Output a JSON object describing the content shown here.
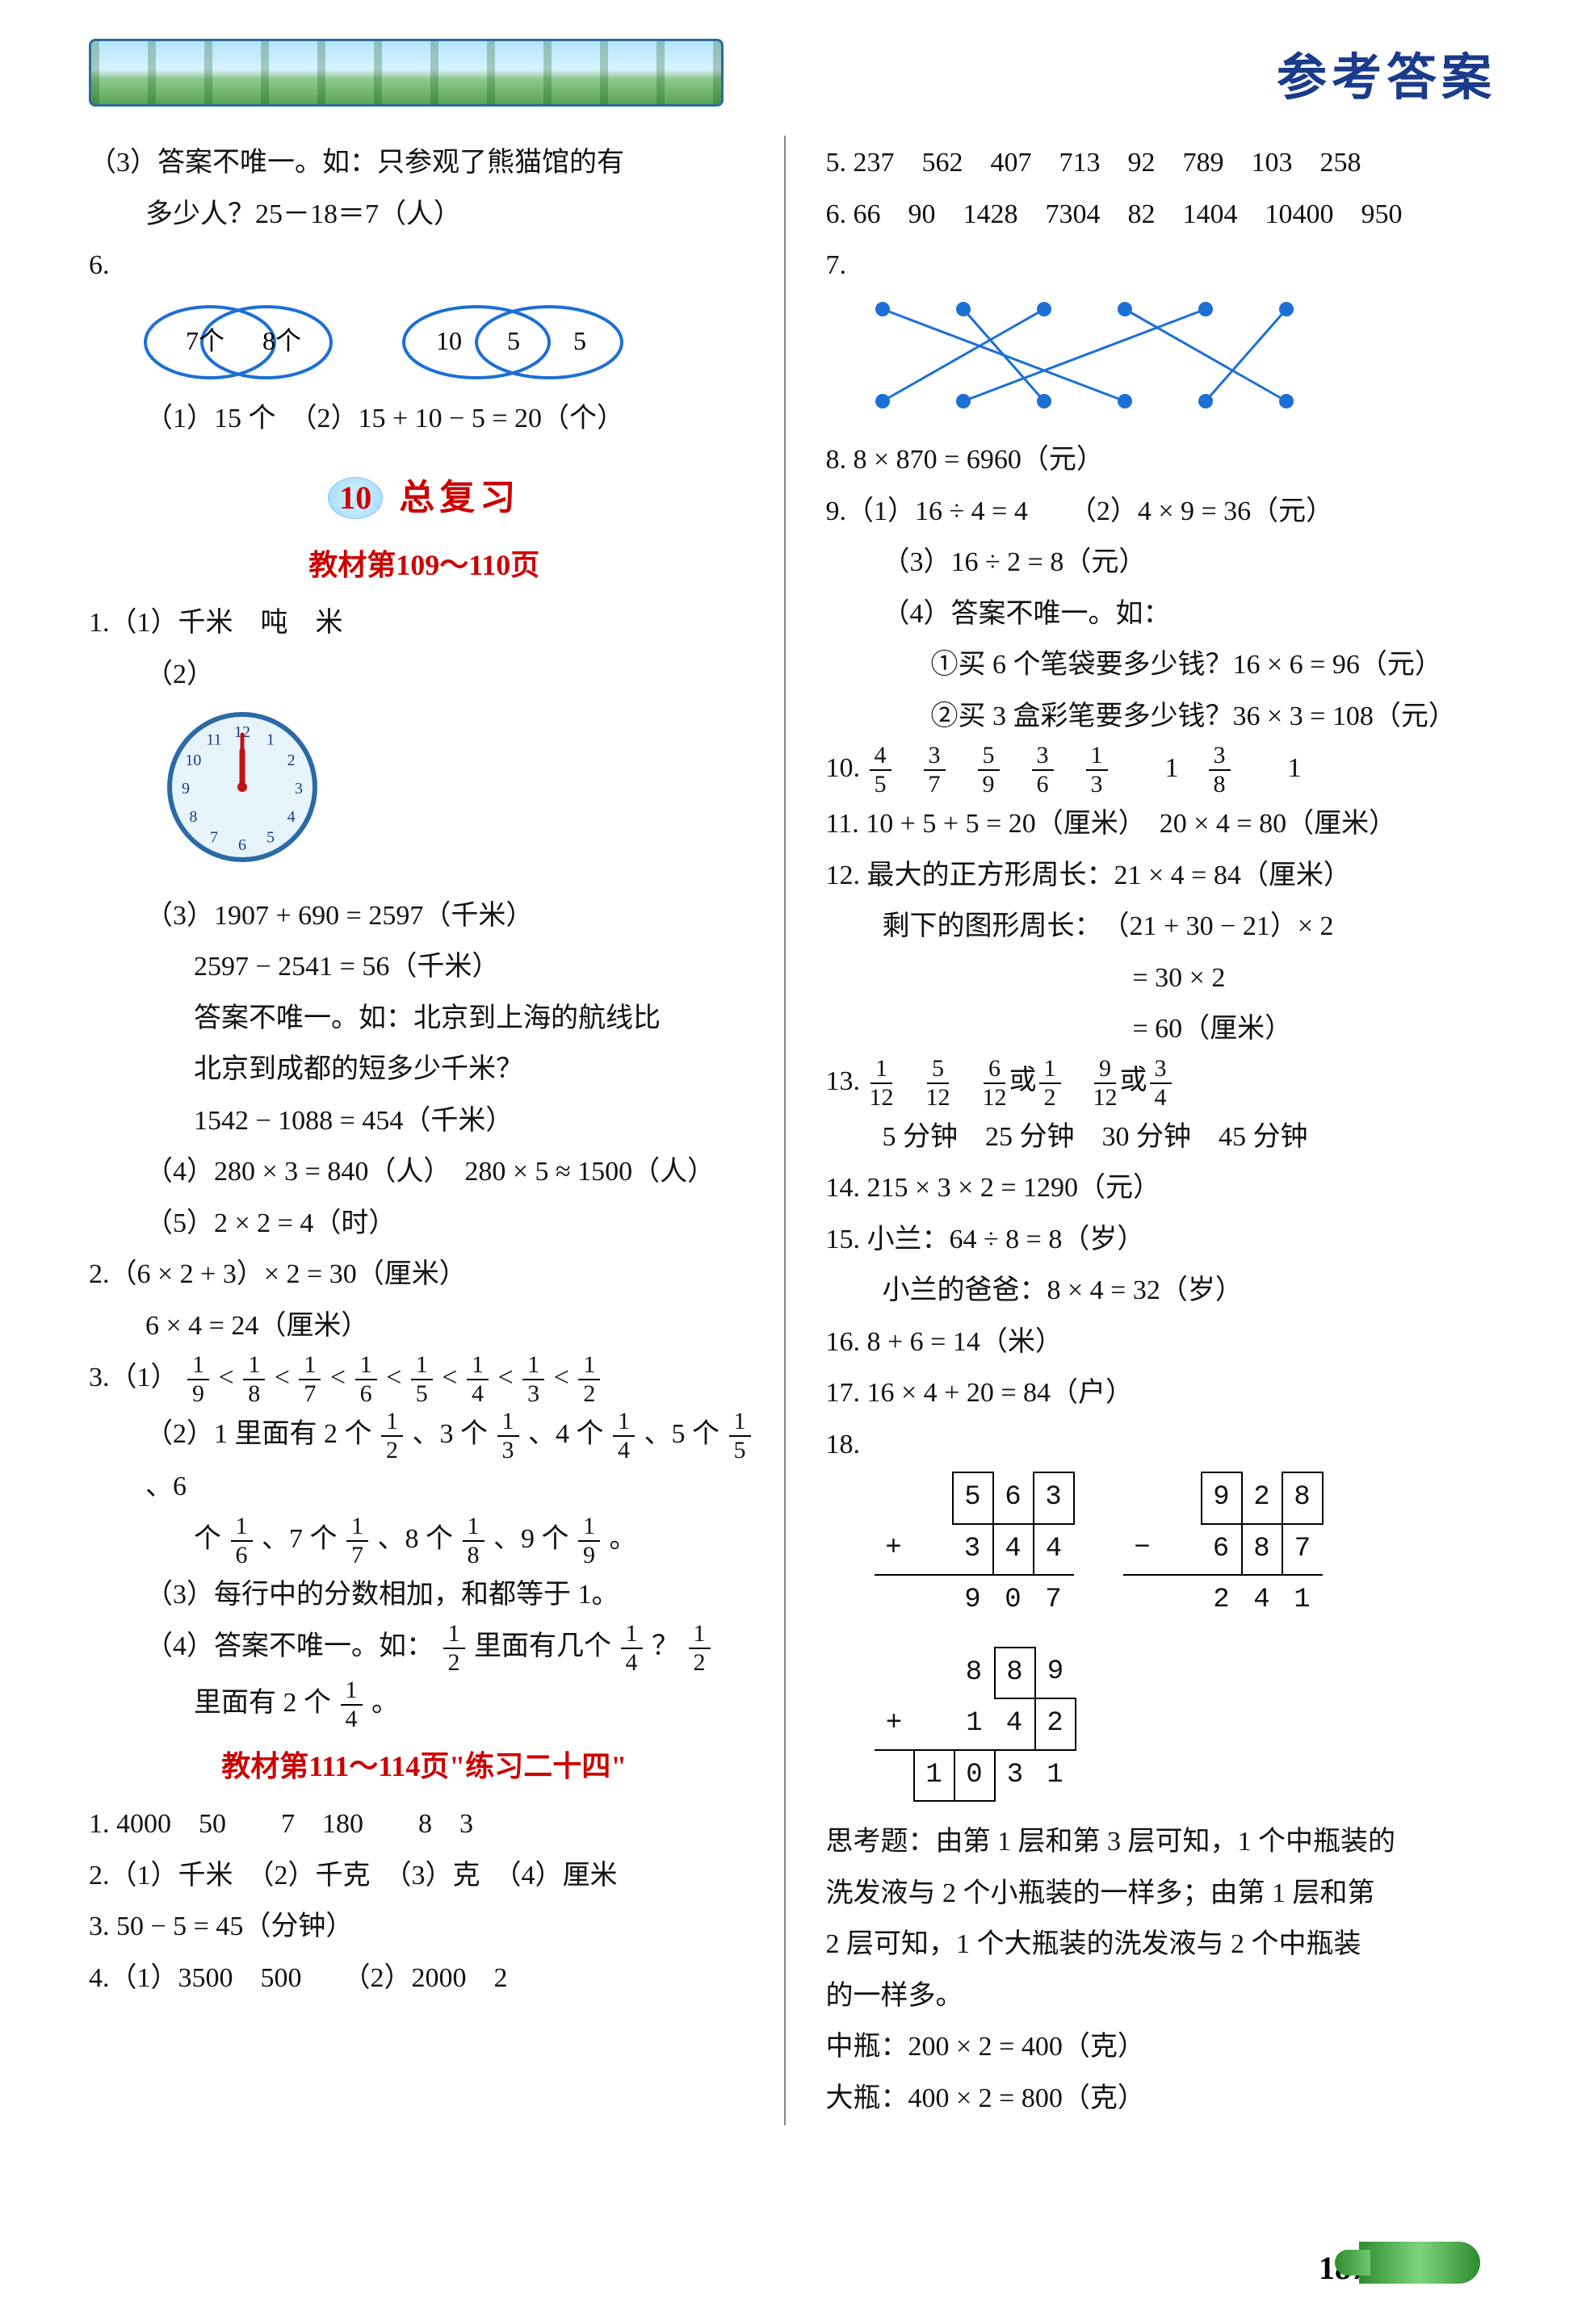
{
  "header": {
    "title": "参考答案"
  },
  "badge": {
    "num": "10",
    "title": "总复习"
  },
  "subheaders": {
    "a": "教材第109～110页",
    "b": "教材第111～114页\"练习二十四\""
  },
  "left": {
    "p3": "（3）答案不唯一。如：只参观了熊猫馆的有",
    "p3b": "多少人？25－18＝7（人）",
    "six": "6.",
    "venn1": {
      "a": "7个",
      "b": "8个"
    },
    "venn2": {
      "a": "10",
      "b": "5",
      "c": "5"
    },
    "p6a": "（1）15 个　（2）15 + 10 − 5 = 20（个）",
    "q1_1": "1.（1）千米　吨　米",
    "q1_2": "（2）",
    "q1_3a": "（3）1907 + 690 = 2597（千米）",
    "q1_3b": "2597 − 2541 = 56（千米）",
    "q1_3c": "答案不唯一。如：北京到上海的航线比",
    "q1_3d": "北京到成都的短多少千米？",
    "q1_3e": "1542 − 1088 = 454（千米）",
    "q1_4": "（4）280 × 3 = 840（人）　280 × 5 ≈ 1500（人）",
    "q1_5": "（5）2 × 2 = 4（时）",
    "q2a": "2.（6 × 2 + 3）× 2 = 30（厘米）",
    "q2b": "6 × 4 = 24（厘米）",
    "q3_1_label": "3.（1）",
    "q3_2_pre": "（2）1 里面有 2 个",
    "q3_2_mid1": "、3 个",
    "q3_2_mid2": "、4 个",
    "q3_2_mid3": "、5 个",
    "q3_2_mid4": "、6",
    "q3_2b_pre": "个",
    "q3_2b_1": "、7 个",
    "q3_2b_2": "、8 个",
    "q3_2b_3": "、9 个",
    "q3_2b_end": "。",
    "q3_3": "（3）每行中的分数相加，和都等于 1。",
    "q3_4a_pre": "（4）答案不唯一。如：",
    "q3_4a_mid": "里面有几个",
    "q3_4a_q": "？",
    "q3_4b_pre": "里面有 2 个",
    "q3_4b_end": "。",
    "p24_1": "1. 4000　50　　7　180　　8　3",
    "p24_2": "2.（1）千米　（2）千克　（3）克　（4）厘米",
    "p24_3": "3. 50 − 5 = 45（分钟）",
    "p24_4": "4.（1）3500　500　　（2）2000　2"
  },
  "right": {
    "q5": "5. 237　562　407　713　92　789　103　258",
    "q6": "6. 66　90　1428　7304　82　1404　10400　950",
    "q7": "7.",
    "q8": "8. 8 × 870 = 6960（元）",
    "q9_1": "9.（1）16 ÷ 4 = 4　　（2）4 × 9 = 36（元）",
    "q9_3": "（3）16 ÷ 2 = 8（元）",
    "q9_4a": "（4）答案不唯一。如：",
    "q9_4b": "①买 6 个笔袋要多少钱？16 × 6 = 96（元）",
    "q9_4c": "②买 3 盒彩笔要多少钱？36 × 3 = 108（元）",
    "q10_label": "10.",
    "q10_tail": "　1　",
    "q10_tail2": "　1",
    "q11": "11. 10 + 5 + 5 = 20（厘米）　20 × 4 = 80（厘米）",
    "q12a": "12. 最大的正方形周长：21 × 4 = 84（厘米）",
    "q12b": "剩下的图形周长：　（21 + 30 − 21）× 2",
    "q12c": "= 30 × 2",
    "q12d": "= 60（厘米）",
    "q13_label": "13.",
    "q13_or1": "或",
    "q13_or2": "或",
    "q13b": "5 分钟　25 分钟　30 分钟　45 分钟",
    "q14": "14. 215 × 3 × 2 = 1290（元）",
    "q15a": "15. 小兰：64 ÷ 8 = 8（岁）",
    "q15b": "小兰的爸爸：8 × 4 = 32（岁）",
    "q16": "16. 8 + 6 = 14（米）",
    "q17": "17. 16 × 4 + 20 = 84（户）",
    "q18": "18.",
    "think_a": "思考题：由第 1 层和第 3 层可知，1 个中瓶装的",
    "think_b": "洗发液与 2 个小瓶装的一样多；由第 1 层和第",
    "think_c": "2 层可知，1 个大瓶装的洗发液与 2 个中瓶装",
    "think_d": "的一样多。",
    "think_e": "中瓶：200 × 2 = 400（克）",
    "think_f": "大瓶：400 × 2 = 800（克）"
  },
  "fractions": {
    "seq": [
      {
        "n": "1",
        "d": "9"
      },
      {
        "n": "1",
        "d": "8"
      },
      {
        "n": "1",
        "d": "7"
      },
      {
        "n": "1",
        "d": "6"
      },
      {
        "n": "1",
        "d": "5"
      },
      {
        "n": "1",
        "d": "4"
      },
      {
        "n": "1",
        "d": "3"
      },
      {
        "n": "1",
        "d": "2"
      }
    ],
    "row2": [
      {
        "n": "1",
        "d": "2"
      },
      {
        "n": "1",
        "d": "3"
      },
      {
        "n": "1",
        "d": "4"
      },
      {
        "n": "1",
        "d": "5"
      }
    ],
    "row2b": [
      {
        "n": "1",
        "d": "6"
      },
      {
        "n": "1",
        "d": "7"
      },
      {
        "n": "1",
        "d": "8"
      },
      {
        "n": "1",
        "d": "9"
      }
    ],
    "half": {
      "n": "1",
      "d": "2"
    },
    "quarter": {
      "n": "1",
      "d": "4"
    },
    "q10": [
      {
        "n": "4",
        "d": "5"
      },
      {
        "n": "3",
        "d": "7"
      },
      {
        "n": "5",
        "d": "9"
      },
      {
        "n": "3",
        "d": "6"
      },
      {
        "n": "1",
        "d": "3"
      },
      {
        "n": "3",
        "d": "8"
      }
    ],
    "q13": [
      {
        "n": "1",
        "d": "12"
      },
      {
        "n": "5",
        "d": "12"
      },
      {
        "n": "6",
        "d": "12"
      },
      {
        "n": "1",
        "d": "2"
      },
      {
        "n": "9",
        "d": "12"
      },
      {
        "n": "3",
        "d": "4"
      }
    ]
  },
  "matching": {
    "top_x": [
      20,
      120,
      220,
      320,
      420,
      520
    ],
    "bot_x": [
      20,
      120,
      220,
      320,
      420,
      520
    ],
    "edges": [
      [
        0,
        3
      ],
      [
        1,
        2
      ],
      [
        2,
        0
      ],
      [
        3,
        5
      ],
      [
        4,
        1
      ],
      [
        5,
        4
      ]
    ],
    "color": "#1b6fd6",
    "dot_r": 9
  },
  "arith": {
    "a": {
      "op": "+",
      "r1": [
        "",
        "5",
        "6",
        "3"
      ],
      "box1": [
        1,
        3
      ],
      "r2": [
        "",
        "3",
        "4",
        "4"
      ],
      "box2": [
        2
      ],
      "sum": [
        "",
        "9",
        "0",
        "7"
      ],
      "boxs": []
    },
    "b": {
      "op": "−",
      "r1": [
        "",
        "9",
        "2",
        "8"
      ],
      "box1": [
        1,
        3
      ],
      "r2": [
        "",
        "6",
        "8",
        "7"
      ],
      "box2": [
        2
      ],
      "sum": [
        "",
        "2",
        "4",
        "1"
      ],
      "boxs": []
    },
    "c": {
      "op": "+",
      "r1": [
        "",
        "8",
        "8",
        "9"
      ],
      "box1": [
        2
      ],
      "r2": [
        "",
        "1",
        "4",
        "2"
      ],
      "box2": [
        3
      ],
      "sum": [
        "1",
        "0",
        "3",
        "1"
      ],
      "boxs": [
        0,
        1
      ]
    }
  },
  "clock": {
    "face": "#e8f4fc",
    "rim": "#2a6aa6",
    "hands": "#c01414",
    "hour_angle": -90,
    "minute_angle": 0
  },
  "colors": {
    "accent_red": "#cc0000",
    "brand_blue": "#1a3a8a",
    "venn": "#1b6fd6"
  },
  "page_number": "187"
}
